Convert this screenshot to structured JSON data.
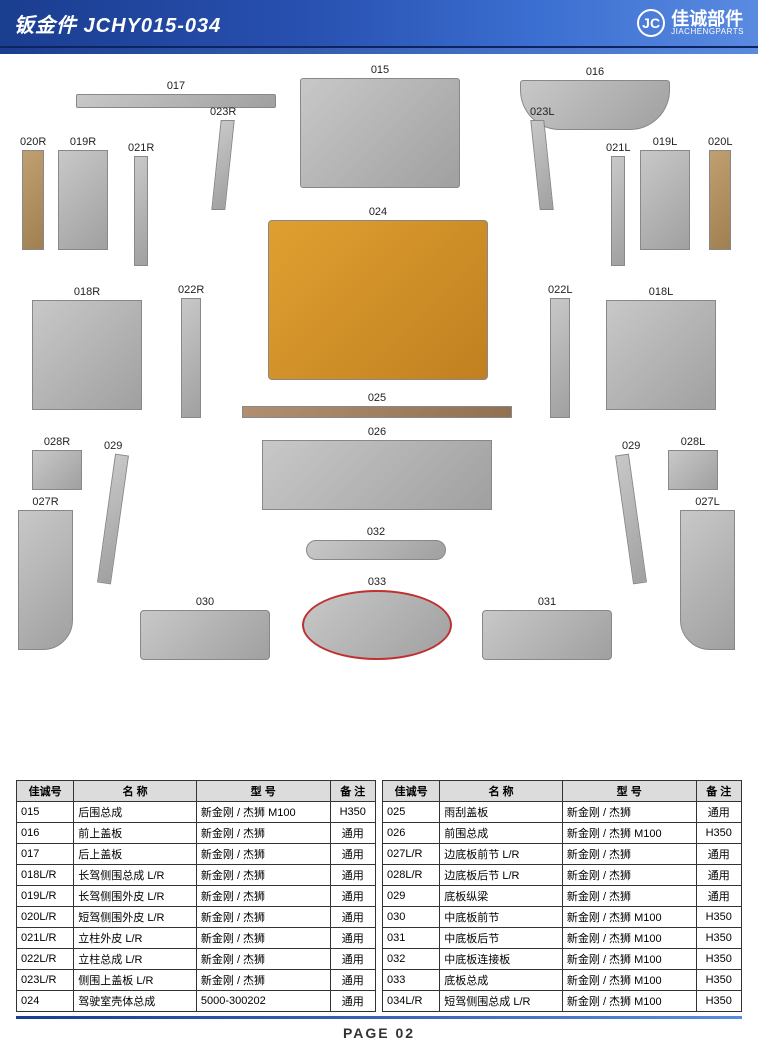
{
  "header": {
    "title": "钣金件  JCHY015-034",
    "brand_logo": "JC",
    "brand_cn": "佳诚部件",
    "brand_en": "JIACHENGPARTS"
  },
  "parts": {
    "p015": "015",
    "p016": "016",
    "p017": "017",
    "p018R": "018R",
    "p018L": "018L",
    "p019R": "019R",
    "p019L": "019L",
    "p020R": "020R",
    "p020L": "020L",
    "p021R": "021R",
    "p021L": "021L",
    "p022R": "022R",
    "p022L": "022L",
    "p023R": "023R",
    "p023L": "023L",
    "p024": "024",
    "p025": "025",
    "p026": "026",
    "p027R": "027R",
    "p027L": "027L",
    "p028R": "028R",
    "p028L": "028L",
    "p029a": "029",
    "p029b": "029",
    "p030": "030",
    "p031": "031",
    "p032": "032",
    "p033": "033"
  },
  "table_headers": {
    "h1": "佳诚号",
    "h2": "名 称",
    "h3": "型 号",
    "h4": "备 注"
  },
  "table_left": [
    {
      "id": "015",
      "name": "后围总成",
      "model": "新金刚 / 杰狮 M100",
      "note": "H350"
    },
    {
      "id": "016",
      "name": "前上盖板",
      "model": "新金刚 / 杰狮",
      "note": "通用"
    },
    {
      "id": "017",
      "name": "后上盖板",
      "model": "新金刚 / 杰狮",
      "note": "通用"
    },
    {
      "id": "018L/R",
      "name": "长驾侧围总成 L/R",
      "model": "新金刚 / 杰狮",
      "note": "通用"
    },
    {
      "id": "019L/R",
      "name": "长驾侧围外皮 L/R",
      "model": "新金刚 / 杰狮",
      "note": "通用"
    },
    {
      "id": "020L/R",
      "name": "短驾侧围外皮 L/R",
      "model": "新金刚 / 杰狮",
      "note": "通用"
    },
    {
      "id": "021L/R",
      "name": "立柱外皮 L/R",
      "model": "新金刚 / 杰狮",
      "note": "通用"
    },
    {
      "id": "022L/R",
      "name": "立柱总成 L/R",
      "model": "新金刚 / 杰狮",
      "note": "通用"
    },
    {
      "id": "023L/R",
      "name": "侧围上盖板 L/R",
      "model": "新金刚 / 杰狮",
      "note": "通用"
    },
    {
      "id": "024",
      "name": "驾驶室壳体总成",
      "model": "5000-300202",
      "note": "通用"
    }
  ],
  "table_right": [
    {
      "id": "025",
      "name": "雨刮盖板",
      "model": "新金刚 / 杰狮",
      "note": "通用"
    },
    {
      "id": "026",
      "name": "前围总成",
      "model": "新金刚 / 杰狮 M100",
      "note": "H350"
    },
    {
      "id": "027L/R",
      "name": "边底板前节 L/R",
      "model": "新金刚 / 杰狮",
      "note": "通用"
    },
    {
      "id": "028L/R",
      "name": "边底板后节 L/R",
      "model": "新金刚 / 杰狮",
      "note": "通用"
    },
    {
      "id": "029",
      "name": "底板纵梁",
      "model": "新金刚 / 杰狮",
      "note": "通用"
    },
    {
      "id": "030",
      "name": "中底板前节",
      "model": "新金刚 / 杰狮 M100",
      "note": "H350"
    },
    {
      "id": "031",
      "name": "中底板后节",
      "model": "新金刚 / 杰狮 M100",
      "note": "H350"
    },
    {
      "id": "032",
      "name": "中底板连接板",
      "model": "新金刚 / 杰狮 M100",
      "note": "H350"
    },
    {
      "id": "033",
      "name": "底板总成",
      "model": "新金刚 / 杰狮 M100",
      "note": "H350"
    },
    {
      "id": "034L/R",
      "name": "短驾侧围总成 L/R",
      "model": "新金刚 / 杰狮 M100",
      "note": "H350"
    }
  ],
  "footer": "PAGE  02",
  "colors": {
    "header_start": "#1a3d8f",
    "header_end": "#5a8ae0",
    "metal": "#b0b0b0",
    "cab": "#d09030",
    "highlight_ring": "#c03030",
    "table_header_bg": "#dcdcdc",
    "border": "#333333"
  }
}
